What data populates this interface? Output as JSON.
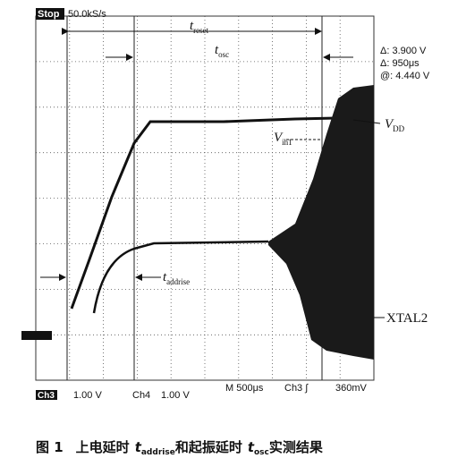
{
  "header": {
    "status": "Stop",
    "sample_rate": "50.0kS/s"
  },
  "cursors": {
    "delta_v": "Δ: 3.900 V",
    "delta_t": "Δ: 950μs",
    "at": "@: 4.440 V"
  },
  "annotations": {
    "t_reset": {
      "main": "t",
      "sub": "reset"
    },
    "t_osc": {
      "main": "t",
      "sub": "osc"
    },
    "vdd": {
      "main": "V",
      "sub": "DD"
    },
    "vih1": {
      "main": "V",
      "sub": "ih1"
    },
    "t_addrise": {
      "main": "t",
      "sub": "addrise"
    },
    "xtal2": "XTAL2"
  },
  "footer": {
    "ch3": "Ch3",
    "ch3_scale": "1.00 V",
    "ch4": "Ch4",
    "ch4_scale": "1.00 V",
    "timebase": "M 500μs",
    "trigger": "Ch3 ∫",
    "trigger_level": "360mV"
  },
  "caption": {
    "label": "图 1",
    "text_before": "上电延时",
    "t1": {
      "main": "t",
      "sub": "addrise"
    },
    "text_mid": "和起振延时",
    "t2": {
      "main": "t",
      "sub": "osc"
    },
    "text_after": "实测结果"
  }
}
